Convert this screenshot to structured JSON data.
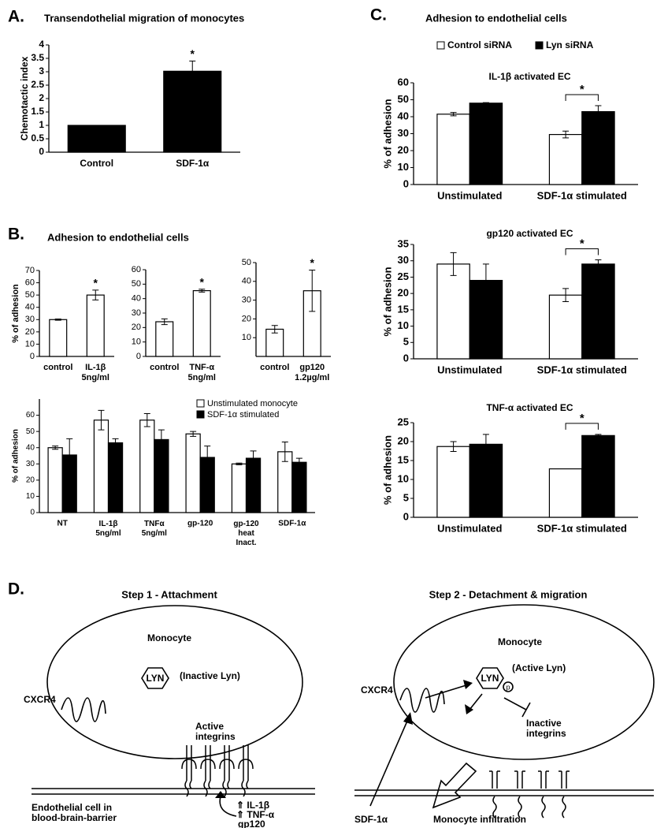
{
  "panels": [
    {
      "label": "A."
    },
    {
      "label": "B.",
      "title": "Adhesion to endothelial cells"
    },
    {
      "label": "C.",
      "title": "Adhesion to endothelial cells"
    }
  ],
  "chart_data": [
    {
      "type": "bar",
      "title": "Transendothelial migration of monocytes",
      "y_label": "Chemotactic index",
      "categories": [
        "Control",
        "SDF-1α"
      ],
      "values": [
        1,
        3.02
      ],
      "errors": [
        0,
        0.38
      ],
      "color": "#000000",
      "ylim": [
        0,
        4
      ],
      "yticks": [
        0,
        0.5,
        1,
        1.5,
        2,
        2.5,
        3,
        3.5,
        4
      ],
      "annotation": "*"
    },
    {
      "type": "bar",
      "y_label": "% of adhesion",
      "categories": [
        "control",
        "IL-1β\n5ng/ml"
      ],
      "values": [
        30,
        50
      ],
      "errors": [
        0.5,
        4
      ],
      "color": "#ffffff",
      "ylim": [
        0,
        70
      ],
      "yticks": [
        0,
        10,
        20,
        30,
        40,
        50,
        60,
        70
      ],
      "annotation": "*"
    },
    {
      "type": "bar",
      "categories": [
        "control",
        "TNF-α\n5ng/ml"
      ],
      "values": [
        24,
        45.5
      ],
      "errors": [
        2,
        1
      ],
      "color": "#ffffff",
      "ylim": [
        0,
        60
      ],
      "yticks": [
        0,
        10,
        20,
        30,
        40,
        50,
        60
      ],
      "annotation": "*"
    },
    {
      "type": "bar",
      "categories": [
        "control",
        "gp120\n1.2µg/ml"
      ],
      "values": [
        14.5,
        35
      ],
      "errors": [
        2,
        11
      ],
      "color": "#ffffff",
      "ylim": [
        0,
        50
      ],
      "yticks": [
        10,
        20,
        30,
        40,
        50
      ],
      "annotation": "*"
    },
    {
      "type": "bar",
      "y_label": "% of adhesion",
      "legend": "top-right",
      "categories": [
        "NT",
        "IL-1β\n5ng/ml",
        "TNFα\n5ng/ml",
        "gp-120",
        "gp-120\nheat\nInact.",
        "SDF-1α"
      ],
      "series": [
        {
          "name": "Unstimulated monocyte",
          "color": "#ffffff",
          "values": [
            40,
            57,
            57,
            48.5,
            30,
            37.5
          ],
          "errors": [
            1,
            6,
            4,
            1.5,
            0.5,
            6
          ]
        },
        {
          "name": "SDF-1α stimulated",
          "color": "#000000",
          "values": [
            35.5,
            43,
            45,
            34,
            33.5,
            31
          ],
          "errors": [
            10,
            2.5,
            6,
            7,
            4.5,
            2.5
          ]
        }
      ],
      "ylim": [
        0,
        70
      ],
      "yticks": [
        0,
        10,
        20,
        30,
        40,
        50,
        60
      ]
    },
    {
      "type": "bar",
      "subtitle": "IL-1β activated EC",
      "y_label": "% of adhesion",
      "legend": "top",
      "annotation": "*",
      "categories": [
        "Unstimulated",
        "SDF-1α stimulated"
      ],
      "series": [
        {
          "name": "Control siRNA",
          "color": "#ffffff",
          "values": [
            41.5,
            29.5
          ],
          "errors": [
            1,
            2
          ]
        },
        {
          "name": "Lyn siRNA",
          "color": "#000000",
          "values": [
            48,
            43
          ],
          "errors": [
            0.3,
            3.5
          ]
        }
      ],
      "ylim": [
        0,
        60
      ],
      "yticks": [
        0,
        10,
        20,
        30,
        40,
        50,
        60
      ]
    },
    {
      "type": "bar",
      "subtitle": "gp120 activated EC",
      "y_label": "% of adhesion",
      "annotation": "*",
      "categories": [
        "Unstimulated",
        "SDF-1α stimulated"
      ],
      "series": [
        {
          "color": "#ffffff",
          "values": [
            29,
            19.5
          ],
          "errors": [
            3.5,
            2
          ]
        },
        {
          "color": "#000000",
          "values": [
            24,
            29
          ],
          "errors": [
            5,
            1.3
          ]
        }
      ],
      "ylim": [
        0,
        35
      ],
      "yticks": [
        0,
        5,
        10,
        15,
        20,
        25,
        30,
        35
      ]
    },
    {
      "type": "bar",
      "subtitle": "TNF-α activated EC",
      "y_label": "% of adhesion",
      "annotation": "*",
      "categories": [
        "Unstimulated",
        "SDF-1α stimulated"
      ],
      "series": [
        {
          "color": "#ffffff",
          "values": [
            18.7,
            12.8
          ],
          "errors": [
            1.3,
            0
          ]
        },
        {
          "color": "#000000",
          "values": [
            19.3,
            21.6
          ],
          "errors": [
            2.6,
            0.3
          ]
        }
      ],
      "ylim": [
        0,
        25
      ],
      "yticks": [
        0,
        5,
        10,
        15,
        20,
        25
      ]
    }
  ],
  "diagram": {
    "label": "D.",
    "steps": [
      {
        "title": "Step 1 - Attachment",
        "cell": "Monocyte",
        "kinase": "LYN",
        "state": "(Inactive Lyn)",
        "receptor": "CXCR4",
        "integrins": "Active\nintegrins"
      },
      {
        "title": "Step 2 - Detachment & migration",
        "cell": "Monocyte",
        "kinase": "LYN",
        "state": "(Active Lyn)",
        "receptor": "CXCR4",
        "integrins": "Inactive\nintegrins"
      }
    ],
    "phospho": "p",
    "endothelium": "Endothelial cell in\nblood-brain-barrier",
    "stimuli": [
      "⇑ IL-1β",
      "⇑ TNF-α",
      "gp120"
    ],
    "chemokine": "SDF-1α",
    "outcome": "Monocyte infiltration"
  }
}
